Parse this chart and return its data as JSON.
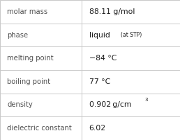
{
  "rows": [
    {
      "label": "molar mass",
      "value": "88.11 g/mol",
      "type": "plain"
    },
    {
      "label": "phase",
      "value": "liquid",
      "type": "phase"
    },
    {
      "label": "melting point",
      "value": "−84 °C",
      "type": "plain"
    },
    {
      "label": "boiling point",
      "value": "77 °C",
      "type": "plain"
    },
    {
      "label": "density",
      "value": "0.902 g/cm",
      "type": "density"
    },
    {
      "label": "dielectric constant",
      "value": "6.02",
      "type": "plain"
    }
  ],
  "bg_color": "#ffffff",
  "border_color": "#c8c8c8",
  "label_color": "#505050",
  "value_color": "#1a1a1a",
  "label_fontsize": 7.2,
  "value_fontsize": 7.8,
  "stp_fontsize": 5.5,
  "sup_fontsize": 5.0,
  "col_split": 0.455
}
